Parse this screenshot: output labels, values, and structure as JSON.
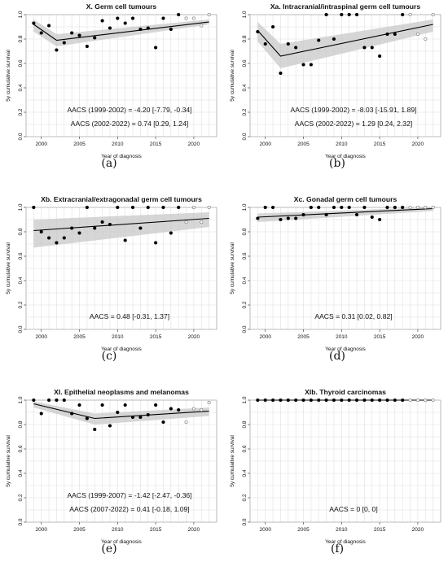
{
  "chart_data": [
    {
      "panel": "(a)",
      "type": "scatter",
      "title": "X. Germ cell tumours",
      "xlabel": "Year of diagnosis",
      "ylabel": "5y cumulative survival",
      "xlim": [
        1998,
        2023
      ],
      "ylim": [
        0,
        1
      ],
      "xticks": [
        2000,
        2005,
        2010,
        2015,
        2020
      ],
      "yticks": [
        0.0,
        0.2,
        0.4,
        0.6,
        0.8,
        1.0
      ],
      "grid": true,
      "points": {
        "x": [
          1999,
          2000,
          2001,
          2002,
          2003,
          2004,
          2005,
          2006,
          2007,
          2008,
          2009,
          2010,
          2011,
          2012,
          2013,
          2014,
          2015,
          2016,
          2017,
          2018,
          2019,
          2020,
          2021,
          2022
        ],
        "y": [
          0.93,
          0.85,
          0.91,
          0.71,
          0.77,
          0.85,
          0.83,
          0.74,
          0.81,
          0.95,
          0.89,
          0.97,
          0.93,
          0.97,
          0.88,
          0.89,
          0.73,
          0.97,
          0.88,
          1.0,
          0.97,
          0.97,
          0.91,
          1.0
        ],
        "open_from": 2019
      },
      "trend": {
        "x": [
          1999,
          2002,
          2022
        ],
        "y": [
          0.92,
          0.79,
          0.94
        ],
        "ci_lower": [
          0.86,
          0.74,
          0.92
        ],
        "ci_upper": [
          0.96,
          0.84,
          0.96
        ]
      },
      "annotations": [
        "AACS (1999-2002) = -4.20 [-7.79, -0.34]",
        "AACS (2002-2022) = 0.74 [0.29, 1.24]"
      ]
    },
    {
      "panel": "(b)",
      "type": "scatter",
      "title": "Xa. Intracranial/intraspinal germ cell tumours",
      "xlabel": "Year of diagnosis",
      "ylabel": "5y cumulative survival",
      "xlim": [
        1998,
        2023
      ],
      "ylim": [
        0,
        1
      ],
      "xticks": [
        2000,
        2005,
        2010,
        2015,
        2020
      ],
      "yticks": [
        0.0,
        0.2,
        0.4,
        0.6,
        0.8,
        1.0
      ],
      "grid": true,
      "points": {
        "x": [
          1999,
          2000,
          2001,
          2002,
          2003,
          2004,
          2005,
          2006,
          2007,
          2008,
          2009,
          2010,
          2011,
          2012,
          2013,
          2014,
          2015,
          2016,
          2017,
          2018,
          2019,
          2020,
          2021,
          2022
        ],
        "y": [
          0.86,
          0.76,
          0.9,
          0.52,
          0.76,
          0.73,
          0.59,
          0.59,
          0.79,
          1.0,
          0.8,
          1.0,
          1.0,
          1.0,
          0.73,
          0.73,
          0.66,
          0.84,
          0.84,
          1.0,
          1.0,
          0.84,
          0.8,
          1.0
        ],
        "open_from": 2019
      },
      "trend": {
        "x": [
          1999,
          2002,
          2022
        ],
        "y": [
          0.87,
          0.66,
          0.92
        ],
        "ci_lower": [
          0.78,
          0.56,
          0.86
        ],
        "ci_upper": [
          0.94,
          0.76,
          0.96
        ]
      },
      "annotations": [
        "AACS (1999-2002) = -8.03 [-15.91, 1.89]",
        "AACS (2002-2022) = 1.29 [0.24, 2.32]"
      ]
    },
    {
      "panel": "(c)",
      "type": "scatter",
      "title": "Xb. Extracranial/extragonadal germ cell tumours",
      "xlabel": "Year of diagnosis",
      "ylabel": "5y cumulative survival",
      "xlim": [
        1998,
        2023
      ],
      "ylim": [
        0,
        1
      ],
      "xticks": [
        2000,
        2005,
        2010,
        2015,
        2020
      ],
      "yticks": [
        0.0,
        0.2,
        0.4,
        0.6,
        0.8,
        1.0
      ],
      "grid": true,
      "points": {
        "x": [
          1999,
          2000,
          2001,
          2002,
          2003,
          2004,
          2005,
          2006,
          2007,
          2008,
          2009,
          2010,
          2011,
          2012,
          2013,
          2014,
          2015,
          2016,
          2017,
          2018,
          2019,
          2020,
          2021,
          2022
        ],
        "y": [
          1.0,
          0.8,
          0.75,
          0.71,
          0.75,
          0.83,
          0.79,
          1.0,
          0.83,
          0.88,
          0.86,
          1.0,
          0.73,
          1.0,
          0.83,
          1.0,
          0.71,
          1.0,
          0.79,
          1.0,
          0.88,
          1.0,
          0.88,
          1.0
        ],
        "open_from": 2019
      },
      "trend": {
        "x": [
          1999,
          2022
        ],
        "y": [
          0.81,
          0.91
        ],
        "ci_lower": [
          0.67,
          0.84
        ],
        "ci_upper": [
          0.9,
          0.96
        ]
      },
      "annotations": [
        "AACS = 0.48 [-0.31, 1.37]"
      ]
    },
    {
      "panel": "(d)",
      "type": "scatter",
      "title": "Xc. Gonadal germ cell tumours",
      "xlabel": "Year of diagnosis",
      "ylabel": "5y cumulative survival",
      "xlim": [
        1998,
        2023
      ],
      "ylim": [
        0,
        1
      ],
      "xticks": [
        2000,
        2005,
        2010,
        2015,
        2020
      ],
      "yticks": [
        0.0,
        0.2,
        0.4,
        0.6,
        0.8,
        1.0
      ],
      "grid": true,
      "points": {
        "x": [
          1999,
          2000,
          2001,
          2002,
          2003,
          2004,
          2005,
          2006,
          2007,
          2008,
          2009,
          2010,
          2011,
          2012,
          2013,
          2014,
          2015,
          2016,
          2017,
          2018,
          2019,
          2020,
          2021,
          2022
        ],
        "y": [
          0.91,
          1.0,
          1.0,
          0.9,
          0.91,
          0.91,
          0.94,
          1.0,
          1.0,
          0.94,
          1.0,
          1.0,
          1.0,
          0.94,
          1.0,
          0.92,
          0.9,
          1.0,
          1.0,
          1.0,
          1.0,
          1.0,
          1.0,
          1.0
        ],
        "open_from": 2019
      },
      "trend": {
        "x": [
          1999,
          2022
        ],
        "y": [
          0.92,
          0.99
        ],
        "ci_lower": [
          0.88,
          0.97
        ],
        "ci_upper": [
          0.95,
          1.0
        ]
      },
      "annotations": [
        "AACS = 0.31 [0.02, 0.82]"
      ]
    },
    {
      "panel": "(e)",
      "type": "scatter",
      "title": "XI. Epithelial neoplasms and melanomas",
      "xlabel": "Year of diagnosis",
      "ylabel": "5y cumulative survival",
      "xlim": [
        1998,
        2023
      ],
      "ylim": [
        0,
        1
      ],
      "xticks": [
        2000,
        2005,
        2010,
        2015,
        2020
      ],
      "yticks": [
        0.0,
        0.2,
        0.4,
        0.6,
        0.8,
        1.0
      ],
      "grid": true,
      "points": {
        "x": [
          1999,
          2000,
          2001,
          2002,
          2003,
          2004,
          2005,
          2006,
          2007,
          2008,
          2009,
          2010,
          2011,
          2012,
          2013,
          2014,
          2015,
          2016,
          2017,
          2018,
          2019,
          2020,
          2021,
          2022
        ],
        "y": [
          1.0,
          0.89,
          1.0,
          1.0,
          1.0,
          0.89,
          0.96,
          0.85,
          0.76,
          0.96,
          0.79,
          0.9,
          0.96,
          0.86,
          0.86,
          0.88,
          0.96,
          0.82,
          0.93,
          0.92,
          0.82,
          0.93,
          0.92,
          0.98
        ],
        "open_from": 2019
      },
      "trend": {
        "x": [
          1999,
          2007,
          2022
        ],
        "y": [
          0.97,
          0.85,
          0.91
        ],
        "ci_lower": [
          0.94,
          0.8,
          0.87
        ],
        "ci_upper": [
          0.99,
          0.89,
          0.94
        ]
      },
      "annotations": [
        "AACS (1999-2007) = -1.42 [-2.47, -0.36]",
        "AACS (2007-2022) = 0.41 [-0.18, 1.09]"
      ]
    },
    {
      "panel": "(f)",
      "type": "scatter",
      "title": "XIb. Thyroid carcinomas",
      "xlabel": "Year of diagnosis",
      "ylabel": "5y cumulative survival",
      "xlim": [
        1998,
        2023
      ],
      "ylim": [
        0,
        1
      ],
      "xticks": [
        2000,
        2005,
        2010,
        2015,
        2020
      ],
      "yticks": [
        0.0,
        0.2,
        0.4,
        0.6,
        0.8,
        1.0
      ],
      "grid": true,
      "points": {
        "x": [
          1999,
          2000,
          2001,
          2002,
          2003,
          2004,
          2005,
          2006,
          2007,
          2008,
          2009,
          2010,
          2011,
          2012,
          2013,
          2014,
          2015,
          2016,
          2017,
          2018,
          2019,
          2020,
          2021,
          2022
        ],
        "y": [
          1.0,
          1.0,
          1.0,
          1.0,
          1.0,
          1.0,
          1.0,
          1.0,
          1.0,
          1.0,
          1.0,
          1.0,
          1.0,
          1.0,
          1.0,
          1.0,
          1.0,
          1.0,
          1.0,
          1.0,
          1.0,
          1.0,
          1.0,
          1.0
        ],
        "open_from": 2019
      },
      "trend": {
        "x": [
          1999,
          2022
        ],
        "y": [
          1.0,
          1.0
        ],
        "ci_lower": [
          1.0,
          1.0
        ],
        "ci_upper": [
          1.0,
          1.0
        ]
      },
      "annotations": [
        "AACS = 0 [0, 0]"
      ]
    }
  ],
  "style": {
    "grid_color": "#e0e0e0",
    "ci_color": "#c8c8c8",
    "trend_color": "#000000",
    "point_color": "#000000",
    "open_point_color": "#808080"
  }
}
